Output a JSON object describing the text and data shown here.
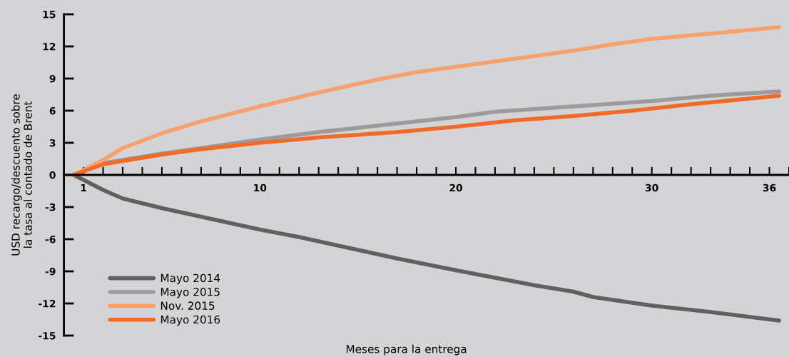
{
  "chart_data": {
    "type": "line",
    "xlabel": "Meses para la entrega",
    "ylabel": "USD recargo/descuento sobre\nla tasa al contado de Brent",
    "xlim": [
      0,
      37
    ],
    "ylim": [
      -15,
      15
    ],
    "xticks": [
      {
        "value": 1,
        "label": "1"
      },
      {
        "value": 2,
        "label": null
      },
      {
        "value": 3,
        "label": null
      },
      {
        "value": 4,
        "label": null
      },
      {
        "value": 5,
        "label": null
      },
      {
        "value": 6,
        "label": null
      },
      {
        "value": 7,
        "label": null
      },
      {
        "value": 8,
        "label": null
      },
      {
        "value": 9,
        "label": null
      },
      {
        "value": 10,
        "label": "10"
      },
      {
        "value": 11,
        "label": null
      },
      {
        "value": 12,
        "label": null
      },
      {
        "value": 13,
        "label": null
      },
      {
        "value": 14,
        "label": null
      },
      {
        "value": 15,
        "label": null
      },
      {
        "value": 16,
        "label": null
      },
      {
        "value": 17,
        "label": null
      },
      {
        "value": 18,
        "label": null
      },
      {
        "value": 19,
        "label": null
      },
      {
        "value": 20,
        "label": "20"
      },
      {
        "value": 21,
        "label": null
      },
      {
        "value": 22,
        "label": null
      },
      {
        "value": 23,
        "label": null
      },
      {
        "value": 24,
        "label": null
      },
      {
        "value": 25,
        "label": null
      },
      {
        "value": 26,
        "label": null
      },
      {
        "value": 27,
        "label": null
      },
      {
        "value": 28,
        "label": null
      },
      {
        "value": 29,
        "label": null
      },
      {
        "value": 30,
        "label": "30"
      },
      {
        "value": 31,
        "label": null
      },
      {
        "value": 32,
        "label": null
      },
      {
        "value": 33,
        "label": null
      },
      {
        "value": 34,
        "label": null
      },
      {
        "value": 35,
        "label": null
      },
      {
        "value": 36,
        "label": "36"
      },
      {
        "value": 37,
        "label": null
      }
    ],
    "yticks": [
      15,
      12,
      9,
      6,
      3,
      0,
      -3,
      -6,
      -9,
      -12,
      -15
    ],
    "grid": false,
    "legend": "bottom left",
    "marker": "none",
    "line_style": "solid",
    "series": [
      {
        "name": "Mayo 2014",
        "color": "#606062",
        "x": [
          0.5,
          2,
          3,
          5,
          7,
          10,
          12,
          13,
          15,
          17,
          20,
          22,
          24,
          26,
          27,
          30,
          33,
          36.5
        ],
        "values": [
          0,
          -1.4,
          -2.2,
          -3.1,
          -3.9,
          -5.1,
          -5.8,
          -6.2,
          -7.0,
          -7.8,
          -8.9,
          -9.6,
          -10.3,
          -10.9,
          -11.4,
          -12.2,
          -12.8,
          -13.6
        ]
      },
      {
        "name": "Mayo 2015",
        "color": "#9b9b9d",
        "x": [
          0.5,
          2,
          5,
          7,
          10,
          13,
          16,
          20,
          22,
          26,
          30,
          33,
          36.5
        ],
        "values": [
          0,
          1.1,
          2.0,
          2.5,
          3.3,
          4.0,
          4.6,
          5.4,
          5.9,
          6.4,
          6.9,
          7.4,
          7.8
        ]
      },
      {
        "name": "Nov. 2015",
        "color": "#f7a070",
        "x": [
          0.5,
          2,
          3,
          5,
          7,
          10,
          13,
          16,
          18,
          22,
          26,
          28,
          30,
          33,
          36.5
        ],
        "values": [
          0,
          1.4,
          2.5,
          3.9,
          5.0,
          6.4,
          7.7,
          8.9,
          9.6,
          10.6,
          11.6,
          12.2,
          12.7,
          13.2,
          13.8
        ]
      },
      {
        "name": "Mayo 2016",
        "color": "#f26a27",
        "x": [
          0.5,
          2,
          5,
          7,
          10,
          13,
          17,
          20,
          23,
          26,
          29,
          32,
          36.5
        ],
        "values": [
          0,
          1.0,
          1.9,
          2.4,
          3.0,
          3.5,
          4.0,
          4.5,
          5.1,
          5.5,
          6.0,
          6.6,
          7.4
        ]
      }
    ]
  }
}
